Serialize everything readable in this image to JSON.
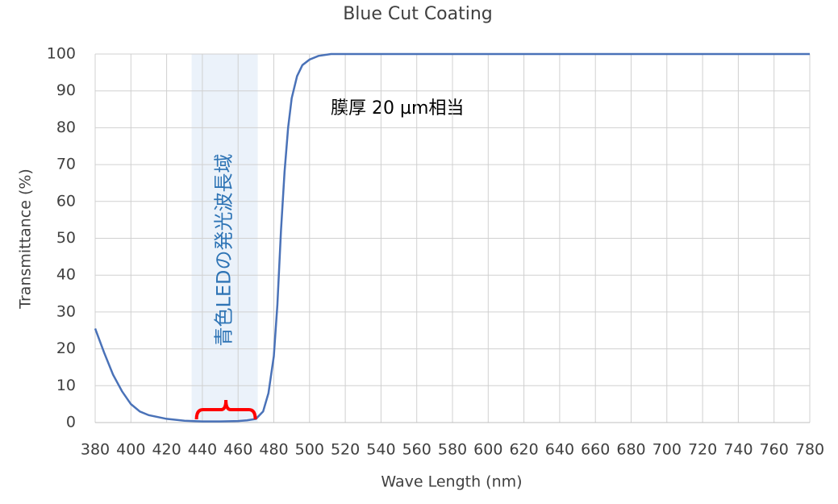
{
  "chart_data": {
    "type": "line",
    "title": "Blue Cut Coating",
    "x_label": "Wave Length (nm)",
    "y_label": "Transmittance (%)",
    "x": [
      380,
      385,
      390,
      395,
      400,
      405,
      410,
      420,
      430,
      440,
      450,
      460,
      465,
      470,
      474,
      477,
      480,
      482,
      484,
      486,
      488,
      490,
      493,
      496,
      500,
      505,
      512,
      780
    ],
    "series": [
      {
        "name": "Blue Cut Coating",
        "color": "#4a72b8",
        "values": [
          25.5,
          19,
          13,
          8.5,
          5,
          3,
          2,
          1,
          0.5,
          0.3,
          0.3,
          0.4,
          0.6,
          1,
          3,
          8,
          18,
          32,
          52,
          68,
          80,
          88,
          94,
          97,
          98.5,
          99.5,
          100,
          100
        ]
      }
    ],
    "xlim": [
      380,
      780
    ],
    "ylim": [
      0,
      100
    ],
    "xticks": [
      380,
      400,
      420,
      440,
      460,
      480,
      500,
      520,
      540,
      560,
      580,
      600,
      620,
      640,
      660,
      680,
      700,
      720,
      740,
      760,
      780
    ],
    "yticks": [
      0,
      10,
      20,
      30,
      40,
      50,
      60,
      70,
      80,
      90,
      100
    ],
    "grid": true,
    "highlight": {
      "range": [
        434,
        471
      ],
      "label": "青色LEDの発光波長域"
    },
    "annotation": "膜厚 20 µm相当"
  }
}
